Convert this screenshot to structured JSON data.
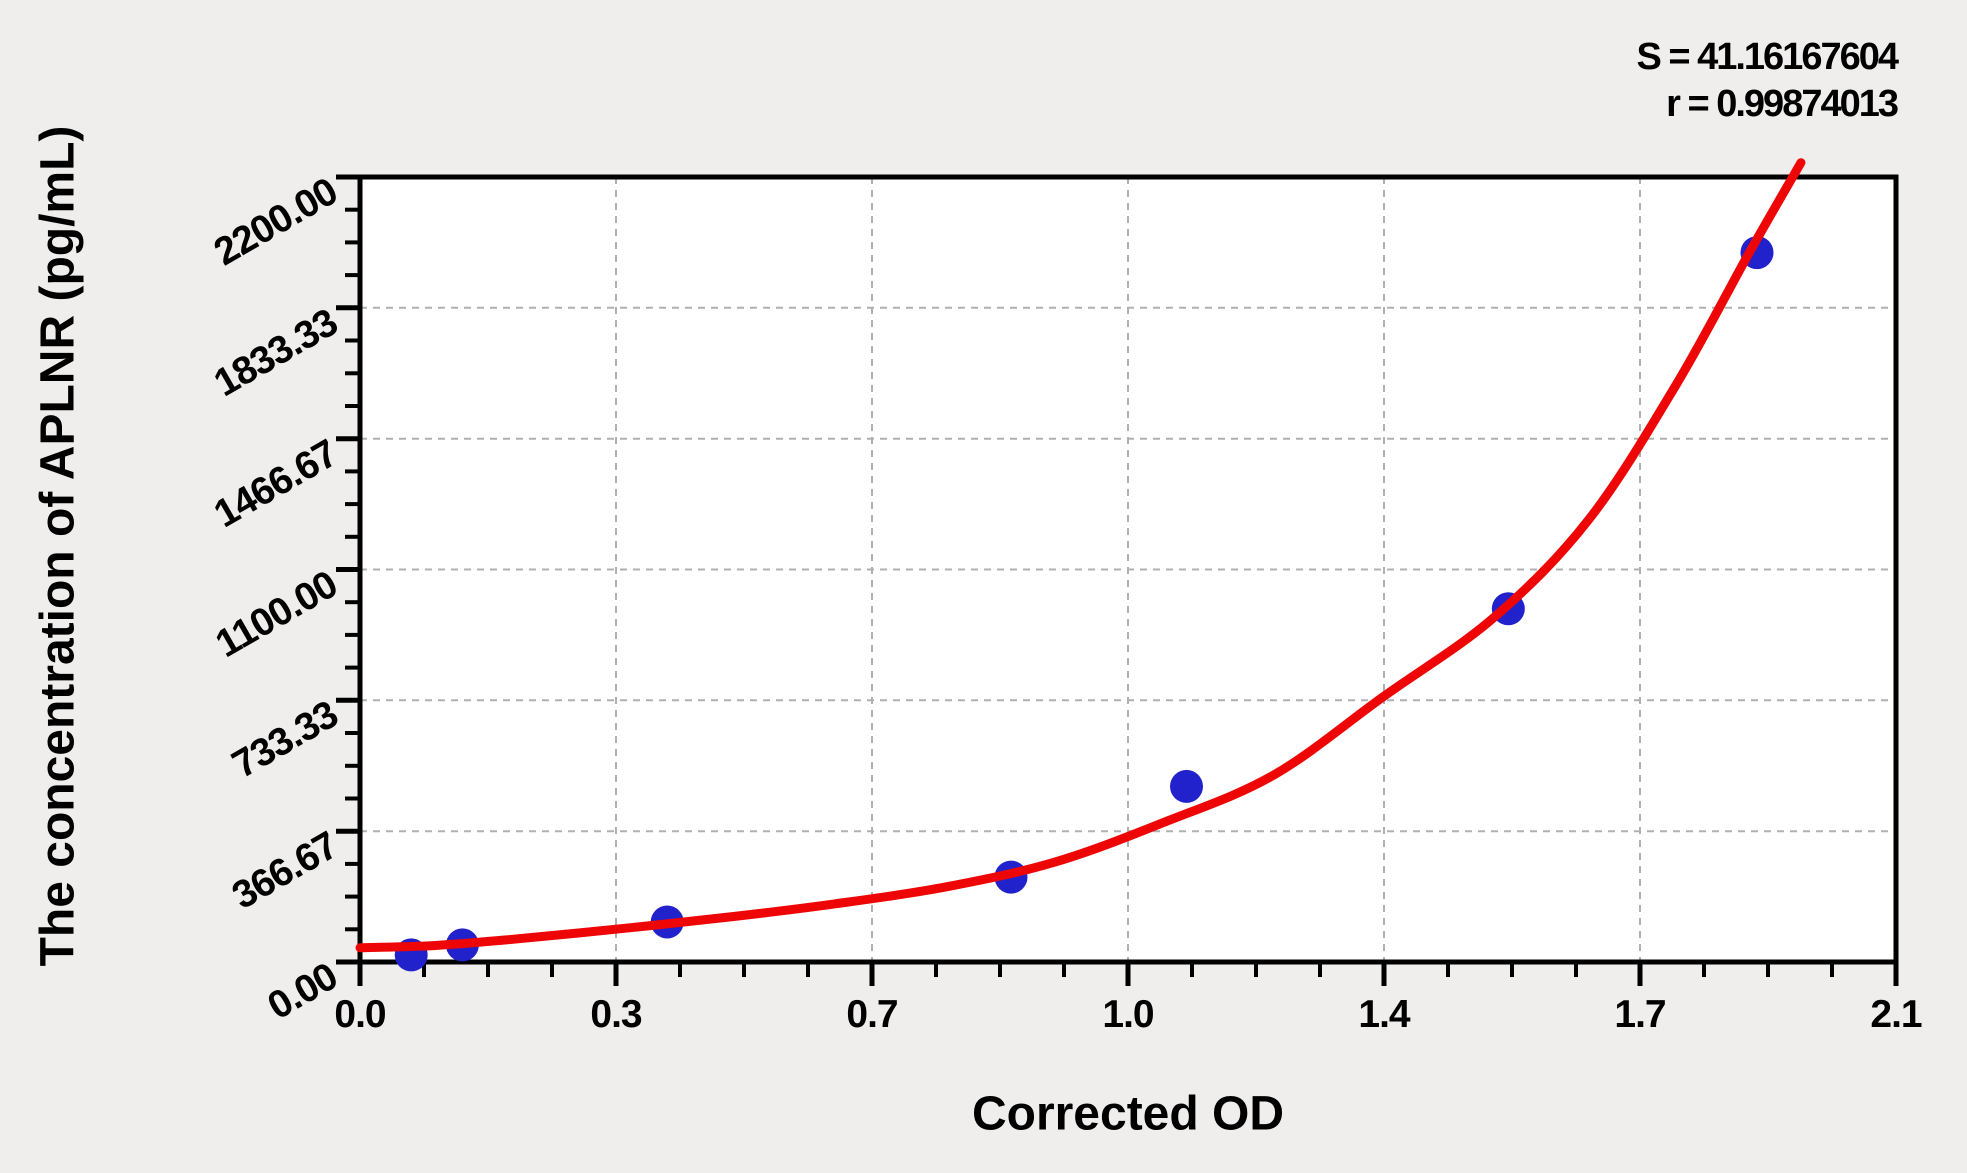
{
  "annotation": {
    "line1": "S = 41.16167604",
    "line2": "r = 0.99874013"
  },
  "colors": {
    "background": "#efeeec",
    "plot_background": "#ffffff",
    "axis": "#000000",
    "grid": "#b0b0b0",
    "point_color": "#2222cc",
    "curve_color": "#ee0606"
  },
  "chart_data": {
    "type": "scatter",
    "title": "",
    "xlabel": "Corrected OD",
    "ylabel": "The concentration of APLNR (pg/mL)",
    "xlim": [
      0,
      2.1
    ],
    "ylim": [
      0,
      2200
    ],
    "grid": "dashed",
    "legend": "none",
    "x_tick_values": [
      0,
      0.35,
      0.7,
      1.05,
      1.4,
      1.75,
      2.1
    ],
    "x_tick_labels": [
      "0.0",
      "0.3",
      "0.7",
      "1.0",
      "1.4",
      "1.7",
      "2.1"
    ],
    "y_tick_values": [
      0,
      366.67,
      733.33,
      1100,
      1466.67,
      1833.33,
      2200
    ],
    "y_tick_labels": [
      "0.00",
      "366.67",
      "733.33",
      "1100.00",
      "1466.67",
      "1833.33",
      "2200.00"
    ],
    "minor_divisions_per_major": 4,
    "series": [
      {
        "name": "standard-points",
        "type": "scatter",
        "color": "#2222cc",
        "points_od_conc": [
          [
            0.07,
            20
          ],
          [
            0.14,
            48
          ],
          [
            0.42,
            112
          ],
          [
            0.89,
            238
          ],
          [
            1.13,
            492
          ],
          [
            1.57,
            990
          ],
          [
            1.91,
            1988
          ]
        ]
      },
      {
        "name": "fitted-curve",
        "type": "line",
        "color": "#ee0606",
        "points_od_conc": [
          [
            0,
            40
          ],
          [
            0.1,
            46
          ],
          [
            0.2,
            62
          ],
          [
            0.35,
            92
          ],
          [
            0.5,
            125
          ],
          [
            0.65,
            163
          ],
          [
            0.8,
            210
          ],
          [
            0.95,
            280
          ],
          [
            1.1,
            392
          ],
          [
            1.25,
            525
          ],
          [
            1.4,
            745
          ],
          [
            1.55,
            965
          ],
          [
            1.68,
            1240
          ],
          [
            1.8,
            1620
          ],
          [
            1.9,
            1990
          ],
          [
            1.97,
            2240
          ]
        ]
      }
    ],
    "fit_stats": {
      "S": "41.16167604",
      "r": "0.99874013"
    }
  }
}
